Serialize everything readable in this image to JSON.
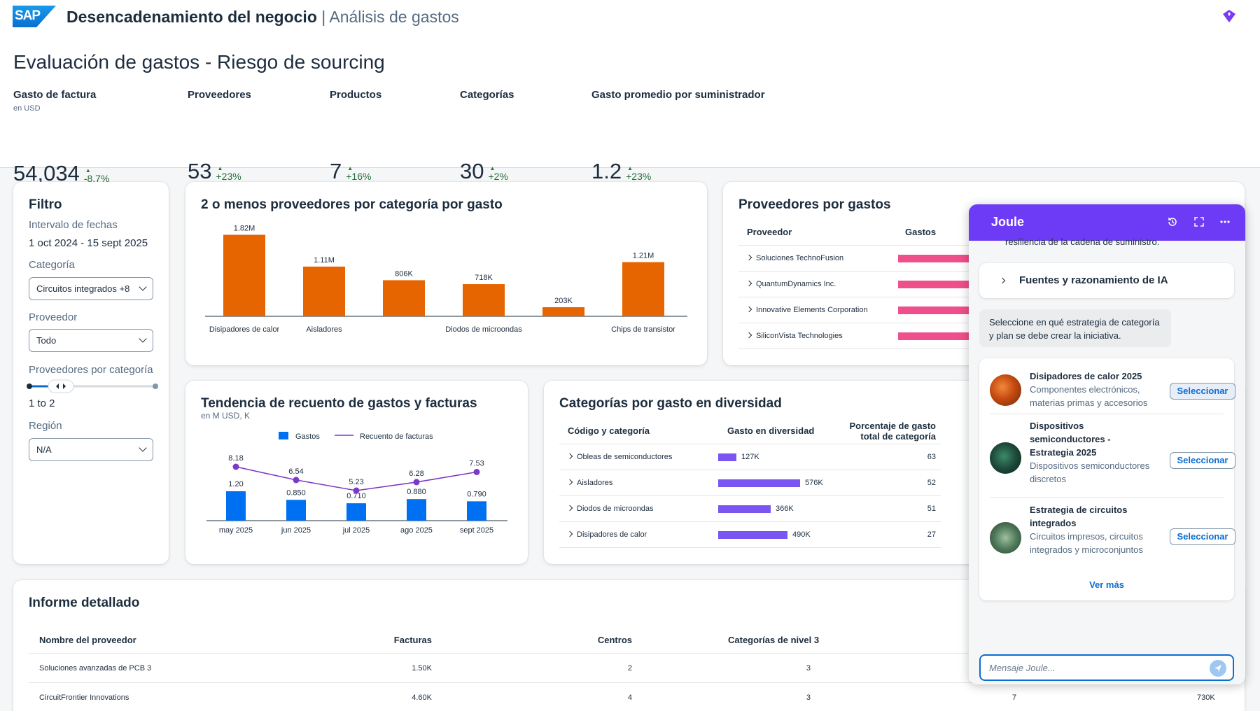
{
  "shell": {
    "logo": "SAP",
    "app_title": "Desencadenamiento del negocio",
    "app_sub": "Análisis de gastos"
  },
  "page": {
    "title": "Evaluación de gastos - Riesgo de sourcing"
  },
  "kpis": [
    {
      "label": "Gasto de factura",
      "sub": "en USD",
      "value": "54,034",
      "delta": "-8.7%"
    },
    {
      "label": "Proveedores",
      "sub": "",
      "value": "53",
      "delta": "+23%"
    },
    {
      "label": "Productos",
      "sub": "",
      "value": "7",
      "delta": "+16%"
    },
    {
      "label": "Categorías",
      "sub": "",
      "value": "30",
      "delta": "+2%"
    },
    {
      "label": "Gasto promedio por suministrador",
      "sub": "",
      "value": "1.2",
      "delta": "+23%"
    }
  ],
  "filter": {
    "title": "Filtro",
    "date_label": "Intervalo de fechas",
    "date_value": "1 oct 2024 - 15 sept 2025",
    "category_label": "Categoría",
    "category_value": "Circuitos integrados +8",
    "supplier_label": "Proveedor",
    "supplier_value": "Todo",
    "per_cat_label": "Proveedores por categoría",
    "per_cat_value": "1 to 2",
    "region_label": "Región",
    "region_value": "N/A"
  },
  "bar_card": {
    "title": "2 o menos proveedores por categoría por gasto"
  },
  "trend_card": {
    "title": "Tendencia de recuento de gastos y facturas",
    "subtitle": "en M USD, K",
    "legend_bar": "Gastos",
    "legend_line": "Recuento de facturas"
  },
  "suppliers_card": {
    "title": "Proveedores por gastos",
    "col_supplier": "Proveedor",
    "col_spend": "Gastos",
    "rows": [
      "Soluciones TechnoFusion",
      "QuantumDynamics Inc.",
      "Innovative Elements Corporation",
      "SiliconVista Technologies"
    ]
  },
  "diversity_card": {
    "title": "Categorías por gasto en diversidad",
    "col_code": "Código y categoría",
    "col_spend": "Gasto en diversidad",
    "col_pct_1": "Porcentaje de gasto",
    "col_pct_2": "total de categoría",
    "rows": [
      {
        "name": "Obleas de semiconductores",
        "spend": "127K",
        "pct": "63",
        "ratio": 0.22
      },
      {
        "name": "Aisladores",
        "spend": "576K",
        "pct": "52",
        "ratio": 1.0
      },
      {
        "name": "Diodos de microondas",
        "spend": "366K",
        "pct": "51",
        "ratio": 0.64
      },
      {
        "name": "Disipadores de calor",
        "spend": "490K",
        "pct": "27",
        "ratio": 0.85
      }
    ]
  },
  "report": {
    "title": "Informe detallado",
    "col_name": "Nombre del proveedor",
    "col_invoices": "Facturas",
    "col_centers": "Centros",
    "col_level3": "Categorías de nivel 3",
    "rows": [
      {
        "name": "Soluciones avanzadas de PCB 3",
        "invoices": "1.50K",
        "centers": "2",
        "level3": "3",
        "extra1": "",
        "extra2": ""
      },
      {
        "name": "CircuitFrontier Innovations",
        "invoices": "4.60K",
        "centers": "4",
        "level3": "3",
        "extra1": "7",
        "extra2": "730K"
      }
    ]
  },
  "joule": {
    "title": "Joule",
    "truncated_text": "resiliencia de la cadena de suministro.",
    "sources_label": "Fuentes y razonamiento de IA",
    "prompt": "Seleccione en qué estrategia de categoría y plan se debe crear la iniciativa.",
    "options": [
      {
        "title": "Disipadores de calor 2025",
        "desc": "Componentes electrónicos, materias primas y accesorios"
      },
      {
        "title": "Dispositivos semiconductores - Estrategia 2025",
        "desc": "Dispositivos semiconductores discretos"
      },
      {
        "title": "Estrategia de circuitos integrados",
        "desc": "Circuitos impresos, circuitos integrados y microconjuntos"
      }
    ],
    "select_label": "Seleccionar",
    "see_more": "Ver más",
    "input_placeholder": "Mensaje Joule..."
  },
  "chart_data": [
    {
      "type": "bar",
      "title": "2 o menos proveedores por categoría por gasto",
      "categories": [
        "Disipadores de calor",
        "Aisladores",
        "",
        "Diodos de microondas",
        "",
        "Chips de transistor"
      ],
      "values": [
        1820000,
        1110000,
        806000,
        718000,
        203000,
        1210000
      ],
      "labels": [
        "1.82M",
        "1.11M",
        "806K",
        "718K",
        "203K",
        "1.21M"
      ],
      "ylim": [
        0,
        2000000
      ],
      "color": "#e76500"
    },
    {
      "type": "bar+line",
      "title": "Tendencia de recuento de gastos y facturas",
      "categories": [
        "may 2025",
        "jun 2025",
        "jul 2025",
        "ago 2025",
        "sept 2025"
      ],
      "series": [
        {
          "name": "Gastos",
          "values": [
            1.2,
            0.85,
            0.71,
            0.88,
            0.79
          ],
          "labels": [
            "1.20",
            "0.850",
            "0.710",
            "0.880",
            "0.790"
          ],
          "color": "#0070f2"
        },
        {
          "name": "Recuento de facturas",
          "values": [
            8.18,
            6.54,
            5.23,
            6.28,
            7.53
          ],
          "labels": [
            "8.18",
            "6.54",
            "5.23",
            "6.28",
            "7.53"
          ],
          "color": "#7a39c8"
        }
      ]
    }
  ]
}
